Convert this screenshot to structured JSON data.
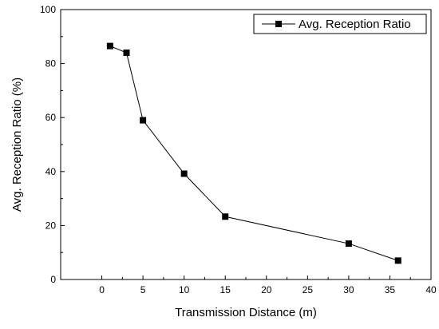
{
  "chart_data": {
    "type": "line",
    "xlabel": "Transmission Distance (m)",
    "ylabel": "Avg. Reception Ratio (%)",
    "xlim": [
      -5,
      40
    ],
    "ylim": [
      0,
      100
    ],
    "xticks": [
      0,
      5,
      10,
      15,
      20,
      25,
      30,
      35,
      40
    ],
    "yticks": [
      0,
      20,
      40,
      60,
      80,
      100
    ],
    "grid": false,
    "legend_position": "top-right",
    "series": [
      {
        "name": "Avg. Reception Ratio",
        "color": "#000000",
        "marker": "square",
        "x": [
          1,
          3,
          5,
          10,
          15,
          30,
          36
        ],
        "y": [
          86.5,
          84,
          59,
          39.2,
          23.3,
          13.3,
          7
        ]
      }
    ]
  }
}
